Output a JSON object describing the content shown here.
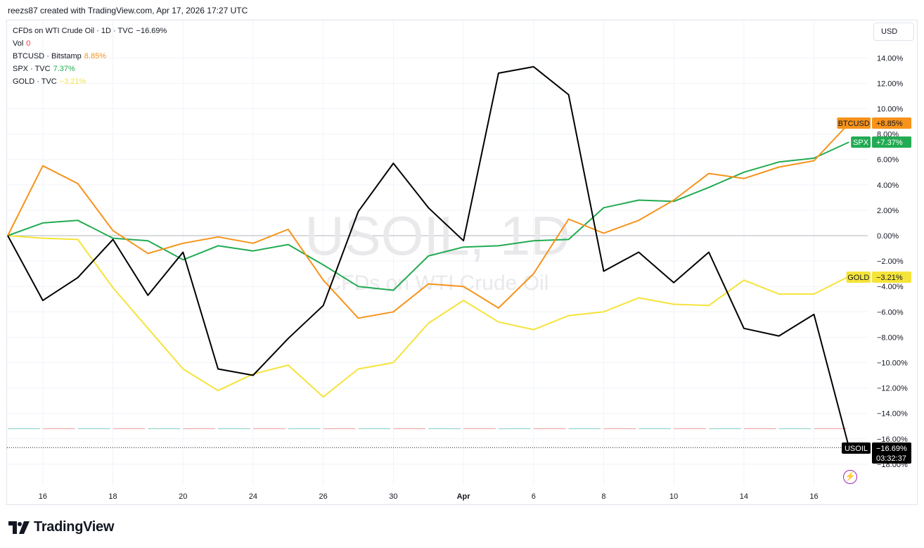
{
  "header": {
    "caption": "reezs87 created with TradingView.com, Apr 17, 2026 17:27 UTC"
  },
  "currency": "USD",
  "legend": [
    {
      "label": "CFDs on WTI Crude Oil · 1D · TVC",
      "value": "−16.69%",
      "color": "#131722"
    },
    {
      "label": "Vol",
      "value": "0",
      "color": "#f23645"
    },
    {
      "label": "BTCUSD · Bitstamp",
      "value": "8.85%",
      "color": "#f7931a"
    },
    {
      "label": "SPX · TVC",
      "value": "7.37%",
      "color": "#22ab52"
    },
    {
      "label": "GOLD · TVC",
      "value": "−3.21%",
      "color": "#f5e33a"
    }
  ],
  "watermark": {
    "symbol": "USOIL, 1D",
    "description": "CFDs on WTI Crude Oil"
  },
  "footer": {
    "brand": "TradingView"
  },
  "chart_data": {
    "type": "line",
    "x": [
      "Mar 13",
      "Mar 16",
      "Mar 17",
      "Mar 18",
      "Mar 19",
      "Mar 20",
      "Mar 23",
      "Mar 24",
      "Mar 25",
      "Mar 26",
      "Mar 27",
      "Mar 30",
      "Mar 31",
      "Apr 1",
      "Apr 2",
      "Apr 6",
      "Apr 7",
      "Apr 8",
      "Apr 9",
      "Apr 10",
      "Apr 13",
      "Apr 14",
      "Apr 15",
      "Apr 16",
      "Apr 17"
    ],
    "x_tick_labels": [
      "16",
      "18",
      "20",
      "24",
      "26",
      "30",
      "Apr",
      "6",
      "8",
      "10",
      "14",
      "16"
    ],
    "x_tick_index": [
      1,
      3,
      5,
      7,
      9,
      11,
      13,
      15,
      17,
      19,
      21,
      23
    ],
    "y_ticks": [
      14,
      12,
      10,
      8,
      6,
      4,
      2,
      0,
      -2,
      -4,
      -6,
      -8,
      -10,
      -12,
      -14,
      -16,
      -18
    ],
    "y_tick_labels": [
      "14.00%",
      "12.00%",
      "10.00%",
      "8.00%",
      "6.00%",
      "4.00%",
      "2.00%",
      "0.00%",
      "−2.00%",
      "−4.00%",
      "−6.00%",
      "−8.00%",
      "−10.00%",
      "−12.00%",
      "−14.00%",
      "−16.00%",
      "−18.00%"
    ],
    "ylim": [
      -18,
      14
    ],
    "unit": "%",
    "series": [
      {
        "name": "USOIL",
        "color": "#000000",
        "last_label": "−16.69%",
        "countdown": "03:32:37",
        "values": [
          0,
          -5.1,
          -3.3,
          -0.3,
          -4.7,
          -1.3,
          -10.5,
          -11.0,
          -8.1,
          -5.5,
          1.9,
          5.7,
          2.2,
          -0.4,
          12.8,
          13.3,
          11.1,
          -2.8,
          -1.3,
          -3.7,
          -1.3,
          -7.3,
          -7.9,
          -6.2,
          -16.69
        ]
      },
      {
        "name": "BTCUSD",
        "color": "#f7931a",
        "last_label": "+8.85%",
        "values": [
          0,
          5.5,
          4.1,
          0.4,
          -1.4,
          -0.6,
          -0.1,
          -0.6,
          0.5,
          -3.5,
          -6.5,
          -6.0,
          -3.8,
          -4.0,
          -5.7,
          -3.0,
          1.3,
          0.2,
          1.2,
          2.8,
          4.9,
          4.5,
          5.4,
          5.9,
          8.85
        ]
      },
      {
        "name": "SPX",
        "color": "#22ab52",
        "last_label": "+7.37%",
        "values": [
          0,
          1.0,
          1.2,
          -0.2,
          -0.4,
          -1.9,
          -0.8,
          -1.2,
          -0.7,
          -2.3,
          -4.0,
          -4.3,
          -1.6,
          -0.9,
          -0.8,
          -0.4,
          -0.3,
          2.2,
          2.8,
          2.7,
          3.8,
          5.0,
          5.8,
          6.1,
          7.37
        ]
      },
      {
        "name": "GOLD",
        "color": "#f5e33a",
        "last_label": "−3.21%",
        "values": [
          0,
          -0.2,
          -0.3,
          -4.1,
          -7.3,
          -10.5,
          -12.2,
          -10.9,
          -10.2,
          -12.7,
          -10.5,
          -10.0,
          -6.9,
          -5.1,
          -6.8,
          -7.4,
          -6.3,
          -6.0,
          -4.9,
          -5.4,
          -5.5,
          -3.5,
          -4.6,
          -4.6,
          -3.21
        ]
      }
    ],
    "grid": true
  }
}
